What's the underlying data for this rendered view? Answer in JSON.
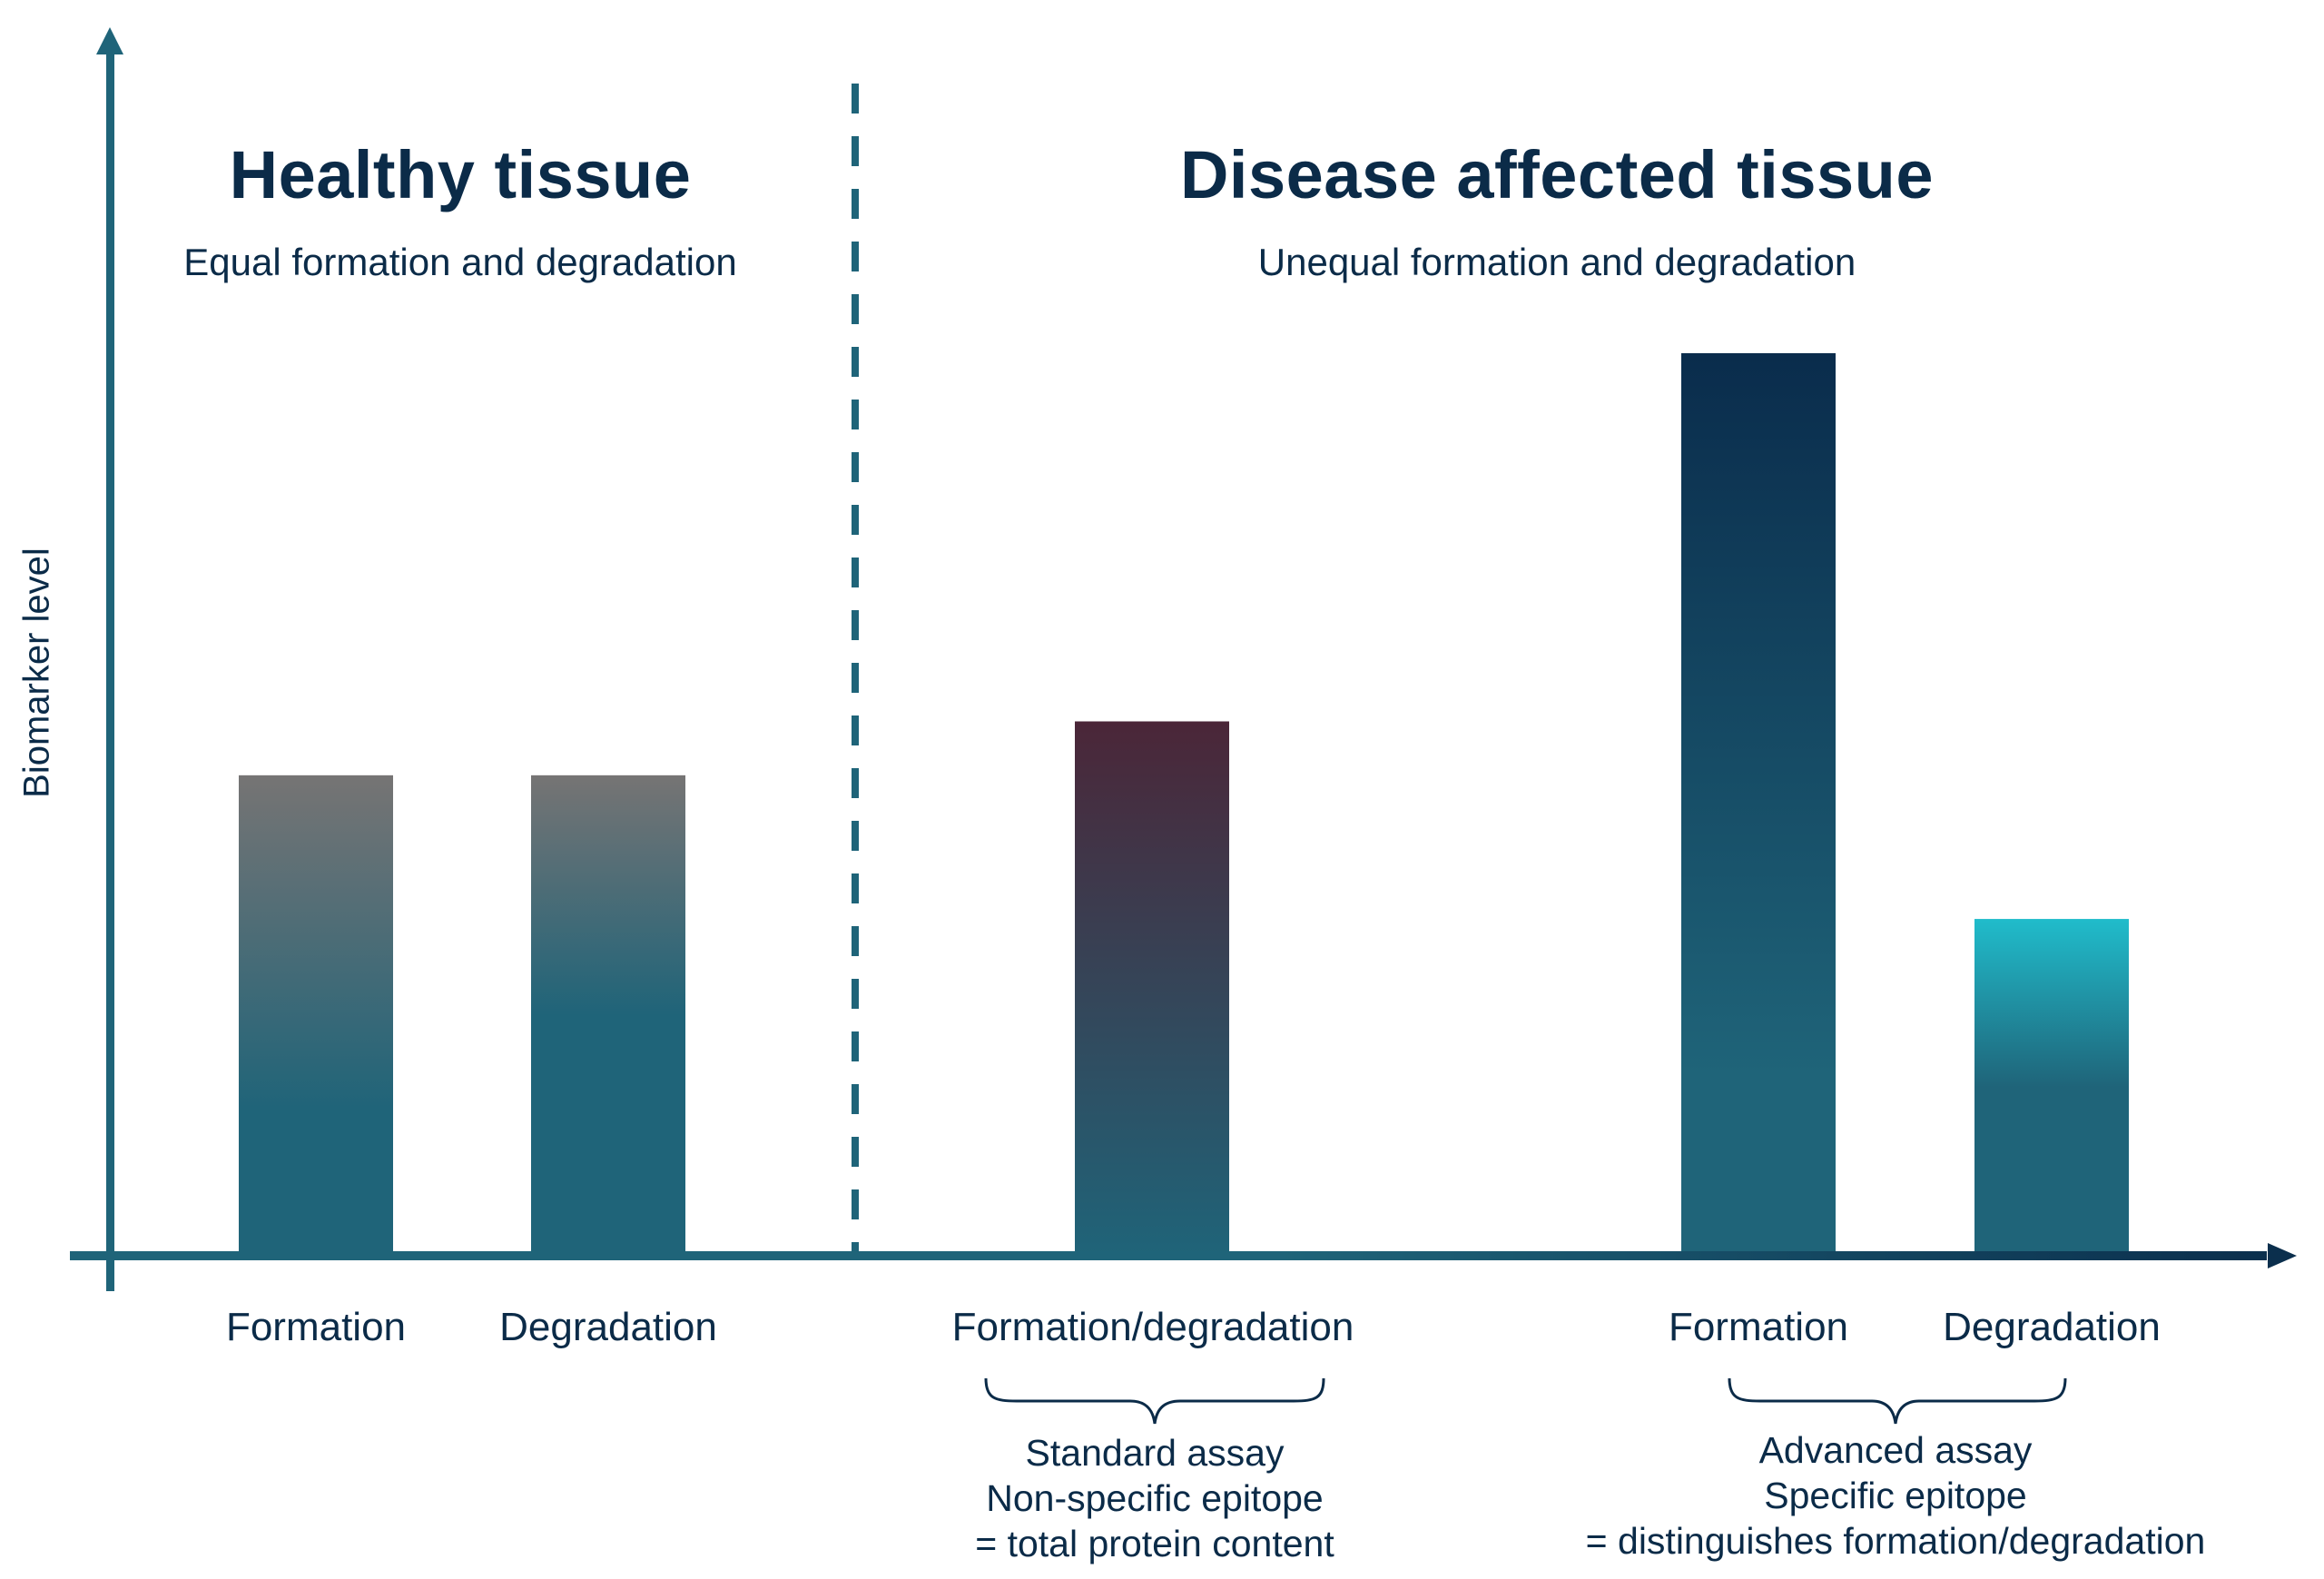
{
  "y_axis_label": "Biomarker level",
  "sections": [
    {
      "title": "Healthy tissue",
      "subtitle": "Equal formation and degradation"
    },
    {
      "title": "Disease affected tissue",
      "subtitle": "Unequal formation and degradation"
    }
  ],
  "groups": [
    {
      "label": "Standard assay",
      "lines": [
        "Standard assay",
        "Non-specific epitope",
        "= total protein content"
      ]
    },
    {
      "label": "Advanced assay",
      "lines": [
        "Advanced assay",
        "Specific epitope",
        "= distinguishes formation/degradation"
      ]
    }
  ],
  "colors": {
    "axis": "#1f6479",
    "axis_end": "#0b2f4d",
    "text": "#0b2b48",
    "healthy_top": "#767474",
    "healthy_bottom": "#1f6479",
    "standard_top": "#4b2638",
    "standard_bottom": "#1f6479",
    "formation_top": "#0a2c4c",
    "formation_bottom": "#1f6479",
    "degradation_top": "#20bccb",
    "degradation_bottom": "#1f6479"
  },
  "chart_data": {
    "type": "bar",
    "title": "",
    "xlabel": "",
    "ylabel": "Biomarker level",
    "ylim": [
      0,
      1
    ],
    "grid": false,
    "categories": [
      "Formation",
      "Degradation",
      "Formation/degradation",
      "Formation",
      "Degradation"
    ],
    "values": [
      0.53,
      0.53,
      0.59,
      1.0,
      0.37
    ],
    "sections": [
      "Healthy tissue",
      "Healthy tissue",
      "Disease affected tissue",
      "Disease affected tissue",
      "Disease affected tissue"
    ],
    "notes": "Relative levels (no numeric axis ticks shown); tallest bar normalized to 1.0"
  }
}
